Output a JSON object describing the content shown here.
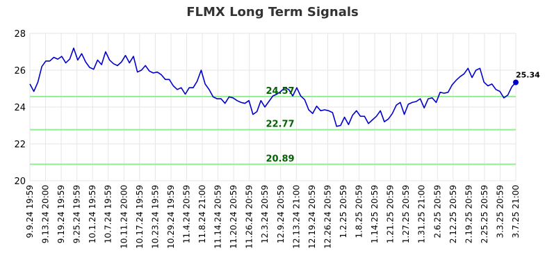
{
  "chart_data": {
    "type": "line",
    "title": "FLMX Long Term Signals",
    "xlabel": "",
    "ylabel": "",
    "ylim": [
      20,
      28
    ],
    "yticks": [
      20,
      22,
      24,
      26,
      28
    ],
    "grid": true,
    "x_tick_labels": [
      "9.9.24 19:59",
      "9.13.24 20:00",
      "9.19.24 19:59",
      "9.25.24 19:59",
      "10.1.24 19:59",
      "10.7.24 19:59",
      "10.11.24 20:00",
      "10.17.24 19:59",
      "10.23.24 19:59",
      "10.29.24 19:59",
      "11.4.24 20:59",
      "11.8.24 21:00",
      "11.14.24 20:59",
      "11.20.24 20:59",
      "11.26.24 20:59",
      "12.3.24 20:59",
      "12.9.24 20:59",
      "12.13.24 21:00",
      "12.19.24 20:59",
      "12.26.24 20:59",
      "1.2.25 20:59",
      "1.8.25 20:59",
      "1.14.25 20:59",
      "1.21.25 20:59",
      "1.27.25 20:59",
      "1.31.25 21:00",
      "2.6.25 20:59",
      "2.12.25 20:59",
      "2.19.25 20:59",
      "2.25.25 20:59",
      "3.3.25 20:59",
      "3.7.25 21:00"
    ],
    "series": [
      {
        "values": [
          25.25,
          24.85,
          25.35,
          26.2,
          26.5,
          26.5,
          26.7,
          26.6,
          26.75,
          26.4,
          26.6,
          27.2,
          26.55,
          26.9,
          26.45,
          26.15,
          26.05,
          26.55,
          26.3,
          27.0,
          26.55,
          26.35,
          26.25,
          26.45,
          26.8,
          26.4,
          26.75,
          25.9,
          26.0,
          26.25,
          25.95,
          25.85,
          25.9,
          25.75,
          25.5,
          25.5,
          25.15,
          24.95,
          25.05,
          24.7,
          25.05,
          25.05,
          25.4,
          26.0,
          25.25,
          24.95,
          24.55,
          24.45,
          24.45,
          24.2,
          24.55,
          24.5,
          24.35,
          24.25,
          24.2,
          24.35,
          23.6,
          23.75,
          24.35,
          24.0,
          24.3,
          24.6,
          24.7,
          24.85,
          25.05,
          24.95,
          24.6,
          25.05,
          24.6,
          24.4,
          23.85,
          23.65,
          24.05,
          23.8,
          23.85,
          23.8,
          23.7,
          22.95,
          23.0,
          23.45,
          23.05,
          23.55,
          23.8,
          23.5,
          23.5,
          23.1,
          23.3,
          23.5,
          23.8,
          23.2,
          23.35,
          23.65,
          24.1,
          24.25,
          23.6,
          24.15,
          24.25,
          24.3,
          24.45,
          23.95,
          24.45,
          24.5,
          24.25,
          24.8,
          24.75,
          24.8,
          25.2,
          25.45,
          25.65,
          25.8,
          26.1,
          25.6,
          26.0,
          26.1,
          25.35,
          25.15,
          25.25,
          24.95,
          24.85,
          24.5,
          24.65,
          25.1,
          25.34
        ]
      }
    ],
    "last_value_label": "25.34",
    "signal_lines": [
      {
        "value": 24.57,
        "label": "24.57"
      },
      {
        "value": 22.77,
        "label": "22.77"
      },
      {
        "value": 20.89,
        "label": "20.89"
      }
    ],
    "colors": {
      "line": "#0000cc",
      "signal_line": "#90ee90",
      "signal_label": "#006400",
      "grid": "#e6e6e6",
      "title": "#333333",
      "text": "#000000"
    }
  }
}
